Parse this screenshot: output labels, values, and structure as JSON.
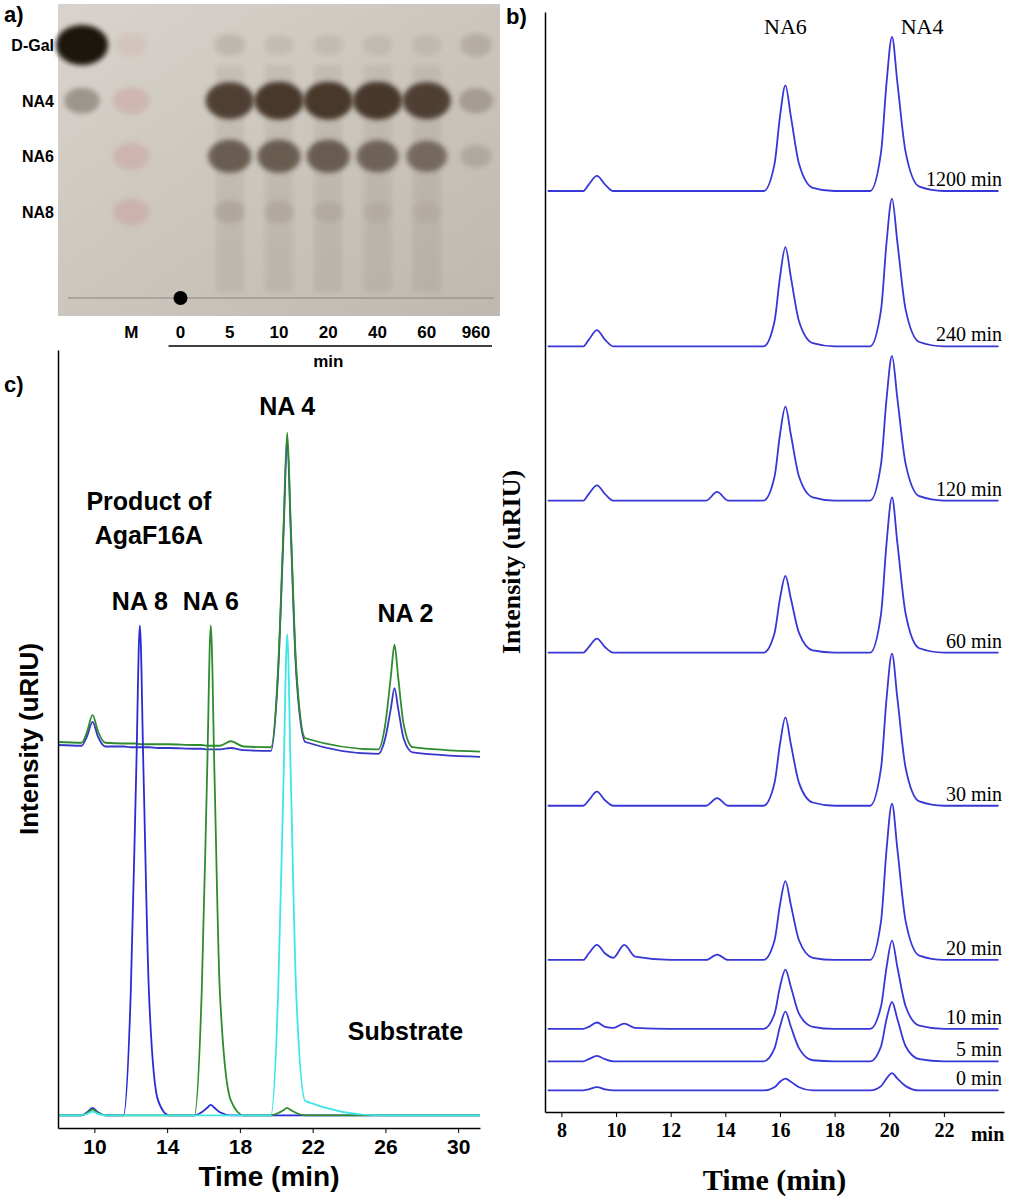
{
  "chart_data": [
    {
      "type": "tlc",
      "title": "a)",
      "xlabel": "min",
      "categories": [
        null,
        "M",
        "0",
        "5",
        "10",
        "20",
        "40",
        "60",
        "960"
      ],
      "colors": [
        "#1a120c",
        "#c98c8c",
        "#3b2a1e",
        "#3b2a1e",
        "#3b2a1e",
        "#3b2a1e",
        "#3b2a1e",
        "#3b2a1e",
        "#3b2a1e"
      ],
      "series": [
        {
          "name": "D-Gal",
          "values": [
            1.0,
            0.15,
            0,
            0.12,
            0.08,
            0.08,
            0.08,
            0.08,
            0.15
          ]
        },
        {
          "name": "NA4",
          "values": [
            0.3,
            0.35,
            0,
            0.85,
            0.9,
            0.9,
            0.9,
            0.85,
            0.25
          ]
        },
        {
          "name": "NA6",
          "values": [
            0,
            0.35,
            0,
            0.65,
            0.65,
            0.65,
            0.6,
            0.55,
            0.15
          ]
        },
        {
          "name": "NA8",
          "values": [
            0,
            0.35,
            0,
            0.12,
            0.1,
            0.08,
            0.06,
            0.05,
            0
          ]
        }
      ]
    },
    {
      "type": "line",
      "title": "b)",
      "xlabel": "Time (min)",
      "ylabel": "Intensity (uRIU)",
      "x": [
        7.5,
        8.8,
        9.0,
        9.3,
        9.6,
        9.9,
        10.3,
        10.7,
        12.0,
        13.3,
        13.7,
        14.1,
        15.4,
        15.8,
        16.0,
        16.2,
        16.4,
        16.7,
        17.2,
        18.0,
        19.3,
        19.7,
        19.9,
        20.1,
        20.3,
        20.6,
        21.1,
        22.0,
        24.0
      ],
      "xlim": [
        7.4,
        24.2
      ],
      "xticks": [
        8,
        10,
        12,
        14,
        16,
        18,
        20,
        22
      ],
      "ylim": [
        0,
        102
      ],
      "yticks": [],
      "tick_labels": "x",
      "series": [
        {
          "name": "1200 min",
          "color": "#3737d8",
          "values": [
            85.4,
            85.4,
            86.0,
            86.8,
            86.0,
            85.4,
            85.4,
            85.4,
            85.4,
            85.4,
            85.4,
            85.4,
            85.4,
            87.9,
            92.3,
            95.2,
            92.3,
            87.9,
            85.7,
            85.4,
            85.4,
            89.0,
            95.4,
            99.7,
            95.4,
            89.0,
            85.8,
            85.4,
            85.4
          ]
        },
        {
          "name": "240 min",
          "color": "#3737d8",
          "values": [
            71.0,
            71.0,
            71.6,
            72.5,
            71.6,
            71.0,
            71.0,
            71.0,
            71.0,
            71.0,
            71.0,
            71.0,
            71.0,
            73.3,
            77.4,
            80.2,
            77.4,
            73.3,
            71.3,
            71.0,
            71.0,
            74.4,
            80.6,
            84.7,
            80.6,
            74.4,
            71.4,
            71.0,
            71.0
          ]
        },
        {
          "name": "120 min",
          "color": "#3737d8",
          "values": [
            56.7,
            56.7,
            57.3,
            58.1,
            57.3,
            56.7,
            56.7,
            56.7,
            56.7,
            56.7,
            57.5,
            56.7,
            56.7,
            58.9,
            62.8,
            65.4,
            62.8,
            58.9,
            57.0,
            56.7,
            56.7,
            60.1,
            66.1,
            70.1,
            66.1,
            60.1,
            57.1,
            56.7,
            56.7
          ]
        },
        {
          "name": "60 min",
          "color": "#3737d8",
          "values": [
            42.6,
            42.6,
            43.1,
            43.9,
            43.1,
            42.6,
            42.6,
            42.6,
            42.6,
            42.6,
            42.6,
            42.6,
            42.6,
            44.4,
            47.6,
            49.7,
            47.6,
            44.4,
            42.8,
            42.6,
            42.6,
            46.2,
            52.7,
            57.0,
            52.7,
            46.2,
            43.0,
            42.6,
            42.6
          ]
        },
        {
          "name": "30 min",
          "color": "#3737d8",
          "values": [
            28.4,
            28.4,
            28.9,
            29.7,
            28.9,
            28.4,
            28.4,
            28.4,
            28.4,
            28.4,
            29.1,
            28.4,
            28.4,
            30.5,
            34.1,
            36.6,
            34.1,
            30.5,
            28.7,
            28.4,
            28.4,
            31.9,
            38.3,
            42.5,
            38.3,
            31.9,
            28.8,
            28.4,
            28.4
          ]
        },
        {
          "name": "20 min",
          "color": "#3737d8",
          "values": [
            14.1,
            14.1,
            14.7,
            15.5,
            14.7,
            14.3,
            15.5,
            14.4,
            14.1,
            14.1,
            14.6,
            14.1,
            14.1,
            15.9,
            19.2,
            21.4,
            19.2,
            15.9,
            14.3,
            14.1,
            14.1,
            17.7,
            24.3,
            28.6,
            24.3,
            17.7,
            14.5,
            14.1,
            14.1
          ]
        },
        {
          "name": "10 min",
          "color": "#3737d8",
          "values": [
            7.7,
            7.7,
            7.9,
            8.3,
            7.9,
            7.8,
            8.2,
            7.8,
            7.7,
            7.7,
            7.7,
            7.7,
            7.7,
            9.1,
            11.6,
            13.2,
            11.6,
            9.1,
            7.9,
            7.7,
            7.7,
            9.8,
            13.4,
            15.9,
            13.4,
            9.8,
            8.0,
            7.7,
            7.7
          ]
        },
        {
          "name": "5 min",
          "color": "#3737d8",
          "values": [
            4.7,
            4.7,
            4.9,
            5.2,
            4.9,
            4.7,
            4.7,
            4.7,
            4.7,
            4.7,
            4.7,
            4.7,
            4.7,
            5.9,
            7.9,
            9.3,
            7.9,
            5.9,
            4.8,
            4.7,
            4.7,
            6.1,
            8.6,
            10.2,
            8.6,
            6.1,
            4.9,
            4.7,
            4.7
          ]
        },
        {
          "name": "0 min",
          "color": "#3737d8",
          "values": [
            2.0,
            2.0,
            2.1,
            2.3,
            2.1,
            2.0,
            2.0,
            2.0,
            2.0,
            2.0,
            2.0,
            2.0,
            2.0,
            2.3,
            2.8,
            3.1,
            2.8,
            2.3,
            2.0,
            2.0,
            2.0,
            2.4,
            3.1,
            3.6,
            3.1,
            2.4,
            2.0,
            2.0,
            2.0
          ]
        }
      ],
      "annotations": [
        {
          "text": "NA6",
          "x": 16.2,
          "y": 100
        },
        {
          "text": "NA4",
          "x": 21.2,
          "y": 100
        },
        {
          "text": "min",
          "x": 23.6
        }
      ]
    },
    {
      "type": "line",
      "title": "c)",
      "xlabel": "Time (min)",
      "ylabel": "Intensity (uRIU)",
      "x": [
        8.0,
        9.3,
        9.6,
        9.9,
        10.2,
        10.6,
        11.6,
        12.0,
        12.3,
        12.5,
        12.7,
        13.0,
        13.5,
        14.1,
        15.5,
        15.9,
        16.2,
        16.4,
        16.6,
        16.9,
        17.5,
        18.2,
        19.7,
        20.1,
        20.4,
        20.6,
        20.8,
        21.1,
        21.6,
        25.6,
        26.0,
        26.3,
        26.5,
        26.7,
        27.0,
        27.5,
        31.2
      ],
      "xlim": [
        8,
        31.2
      ],
      "xticks": [
        10,
        14,
        18,
        22,
        26,
        30
      ],
      "ylim": [
        0,
        104
      ],
      "yticks": [],
      "tick_labels": "x",
      "series": [
        {
          "color": "#3636c8",
          "values": [
            51.2,
            51.1,
            52.4,
            54.3,
            52.3,
            51.0,
            51.0,
            50.9,
            50.9,
            50.9,
            50.9,
            50.9,
            50.8,
            50.8,
            50.7,
            50.7,
            50.6,
            50.6,
            50.6,
            50.6,
            50.8,
            50.5,
            50.4,
            60.8,
            79.5,
            92.0,
            79.5,
            60.7,
            51.6,
            50.0,
            52.2,
            56.1,
            58.8,
            56.1,
            52.1,
            50.2,
            49.6
          ]
        },
        {
          "color": "#2e8b2e",
          "values": [
            51.6,
            51.5,
            53.0,
            55.2,
            53.0,
            51.5,
            51.4,
            51.4,
            51.4,
            51.3,
            51.3,
            51.3,
            51.3,
            51.3,
            51.2,
            51.2,
            51.1,
            51.1,
            51.1,
            51.1,
            51.7,
            51.0,
            50.9,
            61.4,
            80.4,
            93.0,
            80.4,
            61.4,
            52.1,
            50.6,
            54.1,
            60.4,
            64.6,
            60.3,
            54.0,
            50.9,
            50.3
          ]
        },
        {
          "color": "#2a2ad6",
          "values": [
            1.7,
            1.7,
            2.1,
            2.7,
            2.1,
            1.7,
            1.7,
            18.1,
            47.6,
            67.2,
            47.6,
            18.1,
            3.7,
            1.7,
            1.7,
            2.1,
            2.7,
            3.1,
            2.7,
            2.1,
            1.7,
            1.7,
            1.7,
            1.7,
            1.7,
            1.7,
            1.7,
            1.7,
            1.7,
            1.7,
            1.7,
            1.7,
            1.7,
            1.7,
            1.7,
            1.7,
            1.7
          ]
        },
        {
          "color": "#2e8b2e",
          "values": [
            1.7,
            1.7,
            2.0,
            2.5,
            2.0,
            1.7,
            1.7,
            1.7,
            1.7,
            1.7,
            1.7,
            1.7,
            1.7,
            1.7,
            1.7,
            18.1,
            47.6,
            67.2,
            47.6,
            18.1,
            3.7,
            1.7,
            1.7,
            2.0,
            2.4,
            2.7,
            2.4,
            2.0,
            1.7,
            1.7,
            1.7,
            1.7,
            1.7,
            1.7,
            1.7,
            1.7,
            1.7
          ]
        },
        {
          "color": "#3ee6e6",
          "values": [
            1.7,
            1.7,
            1.9,
            2.2,
            1.9,
            1.7,
            1.7,
            1.7,
            1.7,
            1.7,
            1.7,
            1.7,
            1.7,
            1.7,
            1.7,
            1.7,
            1.7,
            1.7,
            1.7,
            1.7,
            1.7,
            1.7,
            1.7,
            17.8,
            46.7,
            66.0,
            46.7,
            17.8,
            3.6,
            1.7,
            1.7,
            1.7,
            1.7,
            1.7,
            1.7,
            1.7,
            1.7
          ]
        }
      ],
      "annotations": [
        {
          "text": "Product of AgaF16A",
          "x": 13.0,
          "y": 82.6
        },
        {
          "text": "NA 4",
          "x": 20.6,
          "y": 95.3
        },
        {
          "text": "NA 2",
          "x": 27.1,
          "y": 67.6
        },
        {
          "text": "NA 8",
          "x": 12.5,
          "y": 69.3
        },
        {
          "text": "NA 6",
          "x": 16.4,
          "y": 69.3
        },
        {
          "text": "Substrate",
          "x": 27.1,
          "y": 11.8
        }
      ]
    }
  ]
}
